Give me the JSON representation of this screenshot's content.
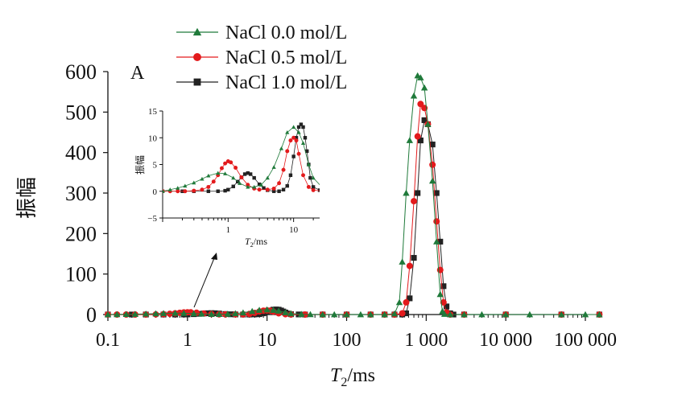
{
  "chart_data": [
    {
      "type": "line",
      "panel_label": "A",
      "xlabel": "T2/ms",
      "xlabel_main": "T",
      "xlabel_sub": "2",
      "xlabel_rest": "/ms",
      "ylabel": "振幅",
      "x_scale": "log",
      "xlim": [
        0.1,
        100000
      ],
      "ylim": [
        0,
        600
      ],
      "xticks": [
        0.1,
        1,
        10,
        100,
        1000,
        10000,
        100000
      ],
      "xtick_labels": [
        "0.1",
        "1",
        "10",
        "100",
        "1 000",
        "10 000",
        "100 000"
      ],
      "yticks": [
        0,
        100,
        200,
        300,
        400,
        500,
        600
      ],
      "ytick_labels": [
        "0",
        "100",
        "200",
        "300",
        "400",
        "500",
        "600"
      ],
      "grid": false,
      "legend_position": "top-center",
      "series": [
        {
          "name": "NaCl 0.0 mol/L",
          "color": "#1f7a3a",
          "marker": "triangle",
          "x": [
            0.1,
            0.13,
            0.17,
            0.22,
            0.3,
            0.4,
            0.5,
            0.7,
            0.9,
            1.2,
            1.5,
            2,
            2.5,
            3.2,
            4,
            5,
            6.5,
            8,
            10,
            12,
            14,
            17,
            20,
            27,
            35,
            50,
            70,
            100,
            150,
            200,
            300,
            400,
            460,
            500,
            560,
            620,
            700,
            780,
            850,
            950,
            1050,
            1200,
            1350,
            1500,
            1600,
            1700,
            2000,
            3000,
            5000,
            10000,
            20000,
            50000,
            100000,
            150000
          ],
          "y": [
            0,
            0.3,
            0.6,
            1,
            1.6,
            2.3,
            2.9,
            3.4,
            3.3,
            2.5,
            1.5,
            0.8,
            0.8,
            1.2,
            2.5,
            4.5,
            8,
            11,
            12,
            11,
            9,
            5,
            2.5,
            0.8,
            0.3,
            0,
            0,
            0,
            0,
            0,
            0,
            2,
            30,
            130,
            300,
            430,
            540,
            590,
            585,
            560,
            470,
            330,
            180,
            50,
            8,
            1,
            0,
            0,
            0,
            0,
            0,
            0,
            0,
            0
          ]
        },
        {
          "name": "NaCl 0.5 mol/L",
          "color": "#e31a1c",
          "marker": "circle",
          "x": [
            0.1,
            0.13,
            0.17,
            0.22,
            0.3,
            0.4,
            0.5,
            0.6,
            0.7,
            0.8,
            0.9,
            1,
            1.1,
            1.3,
            1.6,
            2,
            2.5,
            3,
            4,
            5,
            6,
            7,
            8,
            9,
            10,
            11,
            12,
            14,
            17,
            20,
            30,
            50,
            100,
            200,
            300,
            400,
            500,
            560,
            620,
            700,
            780,
            850,
            950,
            1050,
            1200,
            1350,
            1500,
            1650,
            1800,
            2000,
            3000,
            10000,
            50000,
            150000
          ],
          "y": [
            0,
            0,
            0,
            0,
            0.1,
            0.3,
            0.8,
            1.8,
            3,
            4.3,
            5.2,
            5.6,
            5.4,
            4.4,
            2.6,
            1.2,
            0.5,
            0.3,
            0.3,
            0.5,
            1.5,
            4,
            7.5,
            9.5,
            10,
            9.5,
            7,
            3,
            0.8,
            0.2,
            0,
            0,
            0,
            0,
            0,
            0,
            3,
            30,
            120,
            280,
            440,
            520,
            510,
            470,
            370,
            230,
            110,
            30,
            5,
            0,
            0,
            0,
            0,
            0
          ]
        },
        {
          "name": "NaCl 1.0 mol/L",
          "color": "#222222",
          "marker": "square",
          "x": [
            0.1,
            0.2,
            0.3,
            0.5,
            0.7,
            0.9,
            1,
            1.2,
            1.4,
            1.6,
            1.8,
            2,
            2.2,
            2.5,
            3,
            3.5,
            4,
            5,
            6,
            7,
            8,
            9,
            10,
            11,
            12,
            13,
            14,
            15,
            16,
            17,
            18,
            20,
            25,
            30,
            50,
            100,
            200,
            300,
            400,
            500,
            560,
            620,
            700,
            780,
            850,
            950,
            1050,
            1200,
            1350,
            1500,
            1650,
            1800,
            2000,
            2200,
            3000,
            10000,
            50000,
            150000
          ],
          "y": [
            0,
            0,
            0,
            0,
            0,
            0.1,
            0.3,
            0.9,
            1.8,
            2.6,
            3.2,
            3.4,
            3.2,
            2.5,
            1.3,
            0.6,
            0.2,
            0,
            0,
            0.3,
            1,
            3,
            6.5,
            10,
            12,
            12.5,
            12,
            10,
            7.5,
            5,
            2.5,
            0.8,
            0.2,
            0,
            0,
            0,
            0,
            0,
            0,
            0,
            3,
            40,
            140,
            300,
            430,
            480,
            470,
            420,
            300,
            180,
            70,
            20,
            3,
            0,
            0,
            0,
            0,
            0
          ]
        }
      ]
    },
    {
      "type": "line",
      "panel_label": "",
      "xlabel": "T2/ms",
      "xlabel_main": "T",
      "xlabel_sub": "2",
      "xlabel_rest": "/ms",
      "ylabel": "振幅",
      "x_scale": "log",
      "xlim": [
        0.1,
        25
      ],
      "ylim": [
        -5,
        15
      ],
      "xticks": [
        1,
        10
      ],
      "xtick_labels": [
        "1",
        "10"
      ],
      "yticks": [
        -5,
        0,
        5,
        10,
        15
      ],
      "ytick_labels": [
        "−5",
        "0",
        "5",
        "10",
        "15"
      ],
      "grid": false,
      "note": "inset zoom of the region near T2 ≈ 1 ms"
    }
  ]
}
